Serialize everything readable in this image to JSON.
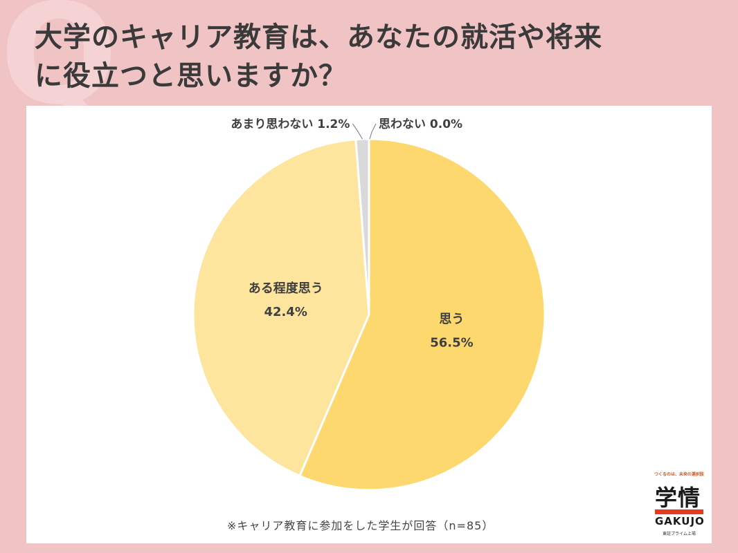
{
  "deco": "Q",
  "title_line1": "大学のキャリア教育は、あなたの就活や将来",
  "title_line2": "に役立つと思いますか？",
  "footnote": "※キャリア教育に参加をした学生が回答（n=85）",
  "logo": {
    "tagline": "つくるのは、未来の選択肢",
    "kanji": "学情",
    "word": "GAKUJO",
    "sub": "東証プライム上場"
  },
  "chart_data": {
    "type": "pie",
    "slices": [
      {
        "label": "思う",
        "value": 56.5,
        "value_label": "56.5%",
        "color": "#fdd86e"
      },
      {
        "label": "ある程度思う",
        "value": 42.4,
        "value_label": "42.4%",
        "color": "#fde59e"
      },
      {
        "label": "あまり思わない",
        "value": 1.2,
        "value_label": "1.2%",
        "color": "#d9d9d9"
      },
      {
        "label": "思わない",
        "value": 0.0,
        "value_label": "0.0%",
        "color": "#bfbfbf"
      }
    ]
  }
}
